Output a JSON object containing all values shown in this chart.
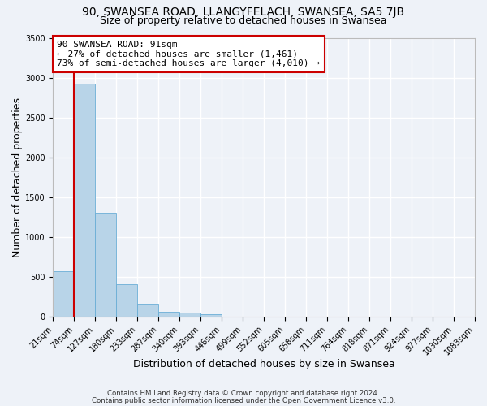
{
  "title": "90, SWANSEA ROAD, LLANGYFELACH, SWANSEA, SA5 7JB",
  "subtitle": "Size of property relative to detached houses in Swansea",
  "xlabel": "Distribution of detached houses by size in Swansea",
  "ylabel": "Number of detached properties",
  "bin_labels": [
    "21sqm",
    "74sqm",
    "127sqm",
    "180sqm",
    "233sqm",
    "287sqm",
    "340sqm",
    "393sqm",
    "446sqm",
    "499sqm",
    "552sqm",
    "605sqm",
    "658sqm",
    "711sqm",
    "764sqm",
    "818sqm",
    "871sqm",
    "924sqm",
    "977sqm",
    "1030sqm",
    "1083sqm"
  ],
  "bar_values": [
    570,
    2930,
    1310,
    415,
    160,
    65,
    55,
    35,
    0,
    0,
    0,
    0,
    0,
    0,
    0,
    0,
    0,
    0,
    0,
    0
  ],
  "bar_color": "#b8d4e8",
  "bar_edge_color": "#6aaed6",
  "vline_color": "#cc0000",
  "ylim": [
    0,
    3500
  ],
  "yticks": [
    0,
    500,
    1000,
    1500,
    2000,
    2500,
    3000,
    3500
  ],
  "annotation_title": "90 SWANSEA ROAD: 91sqm",
  "annotation_line1": "← 27% of detached houses are smaller (1,461)",
  "annotation_line2": "73% of semi-detached houses are larger (4,010) →",
  "annotation_box_facecolor": "#ffffff",
  "annotation_box_edgecolor": "#cc0000",
  "footnote1": "Contains HM Land Registry data © Crown copyright and database right 2024.",
  "footnote2": "Contains public sector information licensed under the Open Government Licence v3.0.",
  "background_color": "#eef2f8",
  "grid_color": "#ffffff",
  "title_fontsize": 10,
  "subtitle_fontsize": 9,
  "axis_label_fontsize": 9,
  "tick_fontsize": 7,
  "annotation_fontsize": 8
}
